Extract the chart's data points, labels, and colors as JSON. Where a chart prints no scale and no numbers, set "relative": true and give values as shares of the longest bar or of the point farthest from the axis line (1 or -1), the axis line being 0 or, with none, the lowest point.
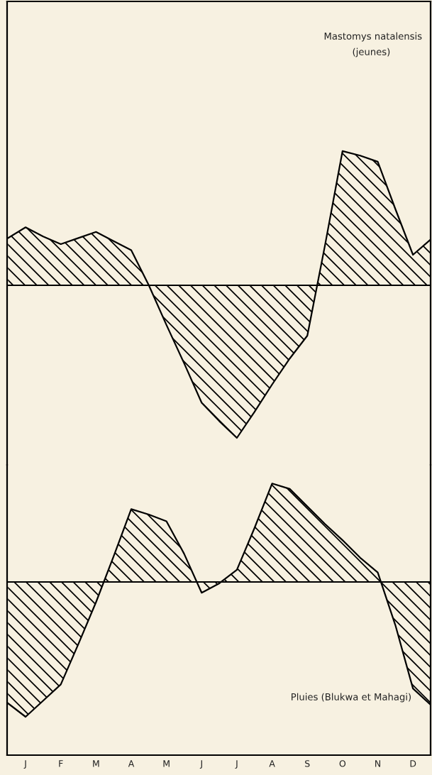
{
  "chart_data": [
    {
      "type": "area",
      "relative": true,
      "annotations": [
        "Mastomys natalensis",
        "(jeunes)"
      ],
      "series": [
        {
          "color": "#000000",
          "values": [
            0.31,
            0.38,
            0.32,
            0.27,
            0.31,
            0.35,
            0.29,
            0.23,
            0,
            -0.26,
            -0.51,
            -0.77,
            -0.89,
            -1,
            -0.83,
            -0.65,
            -0.48,
            -0.33,
            0.26,
            0.88,
            0.85,
            0.81,
            0.5,
            0.2,
            0.3
          ]
        }
      ]
    },
    {
      "type": "area",
      "relative": true,
      "annotations": [
        "Pluies (Blukwa et Mahagi)"
      ],
      "categories": [
        null,
        "J",
        null,
        "F",
        null,
        "M",
        null,
        "A",
        null,
        "M",
        null,
        "J",
        null,
        "J",
        null,
        "A",
        null,
        "S",
        null,
        "O",
        null,
        "N",
        null,
        "D",
        null
      ],
      "series": [
        {
          "color": "#000000",
          "values": [
            -0.9,
            -1,
            -0.88,
            -0.76,
            -0.46,
            -0.15,
            0.19,
            0.54,
            0.5,
            0.45,
            0.21,
            -0.08,
            -0.01,
            0.09,
            0.4,
            0.73,
            0.69,
            0.56,
            0.43,
            0.31,
            0.18,
            0.07,
            -0.32,
            -0.79,
            -0.91
          ]
        }
      ]
    }
  ]
}
